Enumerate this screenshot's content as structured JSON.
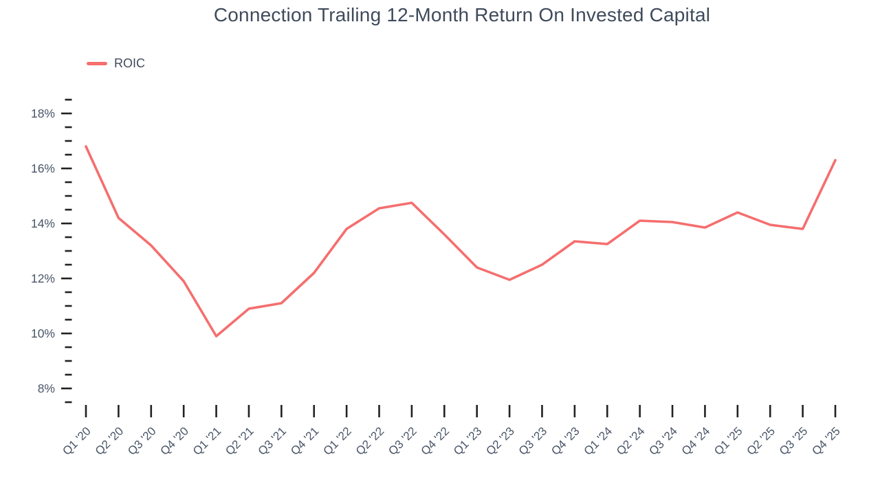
{
  "title": "Connection Trailing 12-Month Return On Invested Capital",
  "legend": {
    "label": "ROIC",
    "color": "#f56e6e"
  },
  "colors": {
    "line": "#f56e6e",
    "title_text": "#3f4a5b",
    "axis_label_text": "#4a5568",
    "tick_mark": "#222222",
    "background": "#ffffff"
  },
  "chart_data": {
    "type": "line",
    "title": "Connection Trailing 12-Month Return On Invested Capital",
    "categories": [
      "Q1 '20",
      "Q2 '20",
      "Q3 '20",
      "Q4 '20",
      "Q1 '21",
      "Q2 '21",
      "Q3 '21",
      "Q4 '21",
      "Q1 '22",
      "Q2 '22",
      "Q3 '22",
      "Q4 '22",
      "Q1 '23",
      "Q2 '23",
      "Q3 '23",
      "Q4 '23",
      "Q1 '24",
      "Q2 '24",
      "Q3 '24",
      "Q4 '24",
      "Q1 '25",
      "Q2 '25",
      "Q3 '25",
      "Q4 '25"
    ],
    "series": [
      {
        "name": "ROIC",
        "color": "#f56e6e",
        "values": [
          16.8,
          14.2,
          13.2,
          11.9,
          9.9,
          10.9,
          11.1,
          12.2,
          13.8,
          14.55,
          14.75,
          13.6,
          12.4,
          11.95,
          12.5,
          13.35,
          13.25,
          14.1,
          14.05,
          13.85,
          14.4,
          13.95,
          13.8,
          16.3
        ]
      }
    ],
    "xlabel": "",
    "ylabel": "",
    "y_axis": {
      "unit": "%",
      "major_tick_labels": [
        "18%",
        "16%",
        "14%",
        "12%",
        "10%",
        "8%"
      ],
      "major_ticks": [
        18,
        16,
        14,
        12,
        10,
        8
      ],
      "minor_tick_step": 0.5,
      "range_min": 7.5,
      "range_max": 18.5
    },
    "grid": false,
    "legend_position": "top-left"
  }
}
